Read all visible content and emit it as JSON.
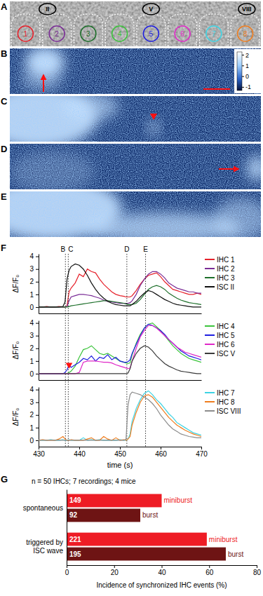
{
  "images": {
    "A": {
      "label": "A",
      "cells": [
        {
          "label": "1",
          "color": "#e6212b"
        },
        {
          "label": "2",
          "color": "#7a2c96"
        },
        {
          "label": "3",
          "color": "#1d6f2a"
        },
        {
          "label": "4",
          "color": "#3cc43c"
        },
        {
          "label": "5",
          "color": "#1f1fe0"
        },
        {
          "label": "6",
          "color": "#e028c8"
        },
        {
          "label": "7",
          "color": "#3dd3e3"
        },
        {
          "label": "8",
          "color": "#ef7d1e"
        }
      ],
      "isc": [
        {
          "label": "II"
        },
        {
          "label": "V"
        },
        {
          "label": "VIII"
        }
      ]
    },
    "B": {
      "label": "B",
      "colorbar": {
        "range": [
          -1.3,
          2.3
        ],
        "ticks": [
          2,
          1,
          0,
          -1
        ]
      }
    },
    "C": {
      "label": "C"
    },
    "D": {
      "label": "D"
    },
    "E": {
      "label": "E"
    }
  },
  "chart_data": [
    {
      "type": "line",
      "panel": "F",
      "ylabel": "ΔF/F₀",
      "legend": "right",
      "tick_labels": "y",
      "x": [
        430,
        431,
        432,
        433,
        434,
        435,
        436,
        436.5,
        437,
        437.5,
        438,
        439,
        440,
        441,
        442,
        443,
        444,
        445,
        446,
        447,
        448,
        449,
        450,
        451,
        451.5,
        452,
        452.5,
        453,
        454,
        455,
        456,
        457,
        458,
        459,
        460,
        461,
        462,
        463,
        464,
        465,
        466,
        467,
        468,
        469,
        470
      ],
      "xlim": [
        430,
        470
      ],
      "ylim": [
        -0.5,
        4.2
      ],
      "yticks": [
        0,
        1,
        2,
        3,
        4
      ],
      "annotations": [
        {
          "x": 436.6,
          "label": "B"
        },
        {
          "x": 437.3,
          "label": "C"
        },
        {
          "x": 451.7,
          "label": "D"
        },
        {
          "x": 456.3,
          "label": "E"
        }
      ],
      "series": [
        {
          "name": "IHC 1",
          "color": "#e6212b",
          "values": [
            0,
            0,
            0.05,
            0,
            0,
            0.05,
            0,
            0,
            0.1,
            1.2,
            1.5,
            1.9,
            2.6,
            2.4,
            3.0,
            2.8,
            2.7,
            2.2,
            1.8,
            1.5,
            1.2,
            1.0,
            0.9,
            0.85,
            0.8,
            0.8,
            0.8,
            0.9,
            1.3,
            1.8,
            2.2,
            2.5,
            2.6,
            2.7,
            2.4,
            2.0,
            1.7,
            1.4,
            1.3,
            1.2,
            1.1,
            1.0,
            1.0,
            1.1,
            1.0
          ]
        },
        {
          "name": "IHC 2",
          "color": "#7a2c96",
          "values": [
            0,
            0,
            0,
            0,
            0,
            0,
            0,
            0,
            0.05,
            0.5,
            0.8,
            0.9,
            1.0,
            1.0,
            0.95,
            0.9,
            0.8,
            0.7,
            0.55,
            0.45,
            0.4,
            0.35,
            0.3,
            0.3,
            0.3,
            0.3,
            0.35,
            0.5,
            1.0,
            1.7,
            2.2,
            2.6,
            2.8,
            2.8,
            2.6,
            2.3,
            1.9,
            1.7,
            1.5,
            1.4,
            1.3,
            1.2,
            1.2,
            1.1,
            1.1
          ]
        },
        {
          "name": "IHC 3",
          "color": "#1d6f2a",
          "values": [
            0,
            0,
            0,
            0,
            0,
            0,
            0,
            0,
            0,
            0.05,
            0.1,
            0.15,
            0.2,
            0.25,
            0.3,
            0.35,
            0.4,
            0.45,
            0.5,
            0.5,
            0.45,
            0.4,
            0.35,
            0.3,
            0.25,
            0.2,
            0.2,
            0.2,
            0.3,
            0.6,
            1.0,
            1.4,
            1.6,
            1.7,
            1.6,
            1.4,
            1.1,
            0.9,
            0.7,
            0.55,
            0.45,
            0.35,
            0.3,
            0.25,
            0.2
          ]
        },
        {
          "name": "ISC II",
          "color": "#111111",
          "values": [
            0,
            0,
            0,
            0,
            0,
            0,
            0.05,
            0.4,
            2.2,
            2.9,
            3.2,
            3.4,
            3.3,
            3.0,
            2.5,
            1.9,
            1.4,
            1.0,
            0.7,
            0.45,
            0.3,
            0.2,
            0.15,
            0.1,
            0.1,
            0.1,
            0.1,
            0.2,
            0.45,
            0.8,
            1.1,
            1.3,
            1.2,
            1.0,
            0.8,
            0.6,
            0.45,
            0.3,
            0.2,
            0.15,
            0.1,
            0.05,
            0,
            0,
            0
          ]
        }
      ]
    },
    {
      "type": "line",
      "ylabel": "ΔF/F₀",
      "legend": "right",
      "tick_labels": "y",
      "x": [
        430,
        431,
        432,
        433,
        434,
        435,
        436,
        436.5,
        437,
        437.5,
        438,
        439,
        440,
        441,
        442,
        443,
        444,
        445,
        446,
        447,
        448,
        449,
        450,
        451,
        451.5,
        452,
        452.5,
        453,
        454,
        455,
        456,
        457,
        458,
        459,
        460,
        461,
        462,
        463,
        464,
        465,
        466,
        467,
        468,
        469,
        470
      ],
      "xlim": [
        430,
        470
      ],
      "ylim": [
        -0.5,
        4.2
      ],
      "yticks": [
        0,
        1,
        2,
        3,
        4
      ],
      "annotations": [
        {
          "x": 437.5,
          "y": 0.7,
          "marker": "triangle-down"
        }
      ],
      "series": [
        {
          "name": "IHC 4",
          "color": "#3cc43c",
          "values": [
            0,
            0,
            0,
            0,
            0,
            0,
            0,
            0,
            0,
            0.1,
            0.2,
            0.6,
            1.3,
            1.9,
            2.0,
            2.2,
            1.9,
            1.6,
            1.5,
            1.6,
            1.4,
            1.2,
            1.0,
            0.9,
            0.85,
            0.8,
            0.85,
            1.5,
            2.4,
            3.1,
            3.6,
            3.9,
            4.0,
            3.7,
            3.4,
            3.0,
            2.6,
            2.2,
            1.9,
            1.6,
            1.4,
            1.2,
            1.1,
            1.0,
            0.9
          ]
        },
        {
          "name": "IHC 5",
          "color": "#1f1fe0",
          "values": [
            0,
            0,
            0,
            0,
            0,
            0,
            0,
            0.1,
            0.3,
            0.7,
            0.5,
            0.7,
            0.9,
            1.2,
            1.1,
            1.4,
            1.0,
            1.3,
            1.2,
            1.5,
            1.1,
            1.3,
            1.0,
            0.9,
            0.9,
            0.95,
            1.1,
            1.6,
            2.3,
            3.0,
            3.6,
            3.9,
            3.8,
            3.6,
            3.4,
            3.1,
            2.7,
            2.4,
            2.1,
            1.8,
            1.6,
            1.4,
            1.3,
            1.2,
            1.1
          ]
        },
        {
          "name": "IHC 6",
          "color": "#e028c8",
          "values": [
            0,
            0,
            0,
            0,
            0,
            0,
            0,
            0,
            0,
            0,
            0,
            0,
            0.1,
            0.9,
            1.0,
            1.0,
            1.0,
            0.95,
            0.9,
            0.9,
            0.85,
            0.7,
            0.6,
            0.5,
            0.45,
            0.4,
            0.45,
            1.0,
            2.0,
            2.9,
            3.4,
            3.8,
            3.8,
            3.6,
            3.3,
            3.0,
            2.7,
            2.4,
            2.1,
            1.9,
            1.7,
            1.6,
            1.5,
            1.4,
            1.3
          ]
        },
        {
          "name": "ISC V",
          "color": "#3a3a3a",
          "values": [
            0,
            0,
            0,
            0,
            0,
            0,
            0,
            0,
            0,
            0,
            0,
            0,
            0,
            0,
            0,
            0,
            0,
            0,
            0,
            0,
            0,
            0,
            0,
            0,
            0,
            0.05,
            0.4,
            1.0,
            1.6,
            2.0,
            2.2,
            2.1,
            1.8,
            1.4,
            1.1,
            0.8,
            0.6,
            0.45,
            0.3,
            0.2,
            0.15,
            0.1,
            0.05,
            0,
            0
          ]
        }
      ]
    },
    {
      "type": "line",
      "ylabel": "ΔF/F₀",
      "xlabel": "time (s)",
      "legend": "right",
      "x": [
        430,
        431,
        432,
        433,
        434,
        435,
        436,
        436.5,
        437,
        437.5,
        438,
        439,
        440,
        441,
        442,
        443,
        444,
        445,
        446,
        447,
        448,
        449,
        450,
        451,
        451.5,
        452,
        452.5,
        453,
        454,
        455,
        456,
        457,
        458,
        459,
        460,
        461,
        462,
        463,
        464,
        465,
        466,
        467,
        468,
        469,
        470
      ],
      "xlim": [
        430,
        470
      ],
      "xticks": [
        430,
        440,
        450,
        460,
        470
      ],
      "ylim": [
        -0.5,
        4.2
      ],
      "yticks": [
        0,
        1,
        2,
        3,
        4
      ],
      "series": [
        {
          "name": "IHC 7",
          "color": "#3dd3e3",
          "values": [
            0,
            0,
            0,
            0.05,
            0,
            0,
            0.05,
            0,
            0,
            0.05,
            0,
            0,
            0,
            0.2,
            0,
            0.05,
            0,
            0.05,
            0,
            0,
            0,
            0,
            0.05,
            0,
            0,
            0.1,
            0.5,
            1.5,
            2.5,
            3.2,
            3.7,
            3.9,
            3.6,
            3.2,
            2.9,
            2.5,
            2.1,
            1.8,
            1.4,
            1.2,
            1.0,
            0.8,
            0.6,
            0.5,
            0.4
          ]
        },
        {
          "name": "IHC 8",
          "color": "#ef7d1e",
          "values": [
            0,
            0.05,
            0,
            0,
            0,
            0.1,
            0.3,
            0.1,
            0,
            0,
            0.05,
            0,
            0,
            0,
            0.1,
            0.2,
            0,
            0,
            0.3,
            0.1,
            0,
            0.2,
            0,
            0.05,
            0,
            0.1,
            0.3,
            1.2,
            2.2,
            3.0,
            3.5,
            3.6,
            3.4,
            3.0,
            2.6,
            2.2,
            1.8,
            1.5,
            1.2,
            1.0,
            0.8,
            0.65,
            0.5,
            0.4,
            0.3
          ]
        },
        {
          "name": "ISC VIII",
          "color": "#8c8c8c",
          "values": [
            0,
            0,
            0,
            0,
            0,
            0,
            0,
            0,
            0,
            0,
            0,
            0,
            0,
            0,
            0,
            0,
            0,
            0,
            0,
            0,
            0,
            0,
            0,
            0,
            0.1,
            2.8,
            3.6,
            3.8,
            3.7,
            3.6,
            3.4,
            3.2,
            2.9,
            2.5,
            2.0,
            1.6,
            1.2,
            0.9,
            0.7,
            0.5,
            0.4,
            0.3,
            0.25,
            0.2,
            0.2
          ]
        }
      ]
    },
    {
      "type": "bar",
      "panel": "G",
      "orientation": "horizontal",
      "title": "n = 50 IHCs; 7 recordings; 4 mice",
      "xlabel": "Incidence of synchronized IHC events (%)",
      "categories": [
        "spontaneous",
        "triggered by ISC wave"
      ],
      "xlim": [
        0,
        80
      ],
      "xticks": [
        0,
        20,
        40,
        60,
        80
      ],
      "series": [
        {
          "name": "miniburst",
          "color": "#ee1c25",
          "values": [
            40,
            59
          ],
          "counts": [
            149,
            221
          ]
        },
        {
          "name": "burst",
          "color": "#6e1414",
          "values": [
            31,
            67
          ],
          "counts": [
            92,
            195
          ]
        }
      ]
    }
  ]
}
